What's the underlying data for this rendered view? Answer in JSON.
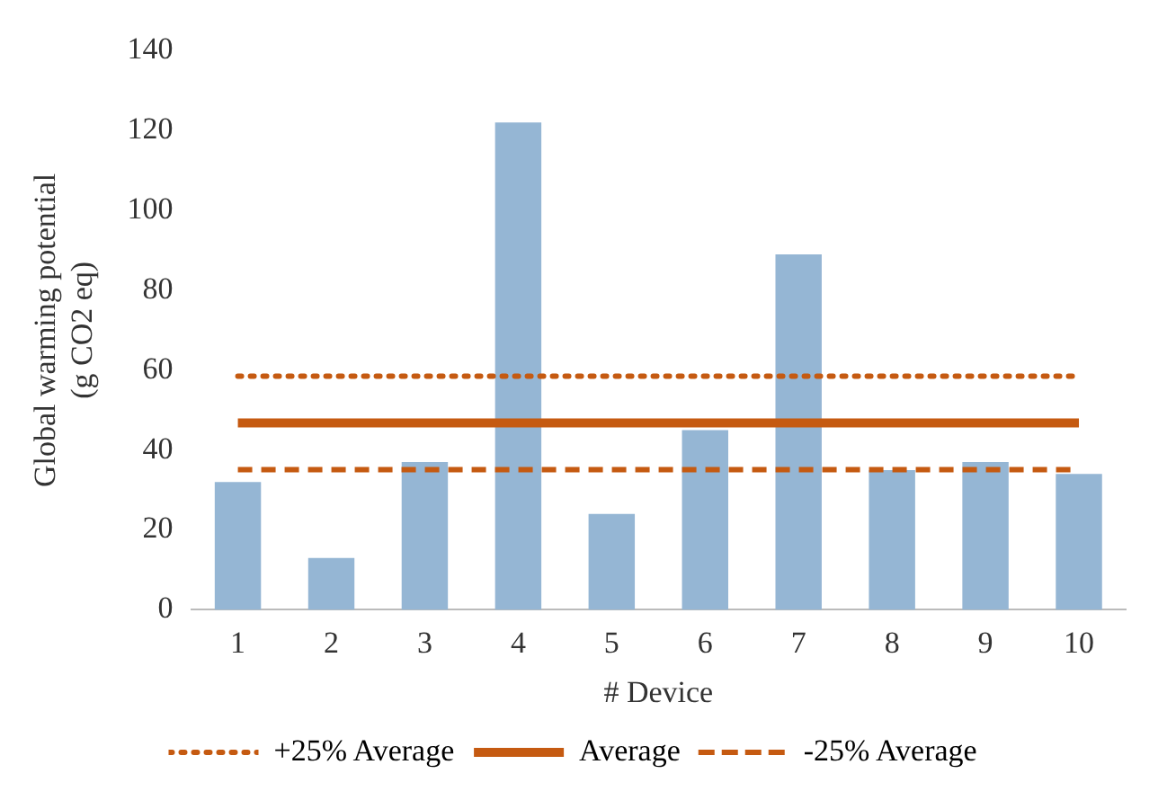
{
  "chart_data": {
    "type": "bar",
    "xlabel": "# Device",
    "ylabel": "Global warming potential\n(g CO2 eq)",
    "categories": [
      "1",
      "2",
      "3",
      "4",
      "5",
      "6",
      "7",
      "8",
      "9",
      "10"
    ],
    "series": [
      {
        "color": "#95b6d4",
        "values": [
          32,
          13,
          37,
          122,
          24,
          45,
          89,
          35,
          37,
          34
        ]
      },
      {
        "type": "line",
        "name": "+25% Average",
        "color": "#c55a11",
        "line_style": "dotted",
        "values": [
          58.5,
          58.5,
          58.5,
          58.5,
          58.5,
          58.5,
          58.5,
          58.5,
          58.5,
          58.5
        ]
      },
      {
        "type": "line",
        "name": "Average",
        "color": "#c55a11",
        "line_style": "solid",
        "values": [
          46.8,
          46.8,
          46.8,
          46.8,
          46.8,
          46.8,
          46.8,
          46.8,
          46.8,
          46.8
        ]
      },
      {
        "type": "line",
        "name": "-25% Average",
        "color": "#c55a11",
        "line_style": "dashed",
        "values": [
          35.1,
          35.1,
          35.1,
          35.1,
          35.1,
          35.1,
          35.1,
          35.1,
          35.1,
          35.1
        ]
      }
    ],
    "ylim": [
      0,
      140
    ],
    "yticks": [
      0,
      20,
      40,
      60,
      80,
      100,
      120,
      140
    ],
    "grid": false,
    "legend": "bottom",
    "marker": "none"
  }
}
